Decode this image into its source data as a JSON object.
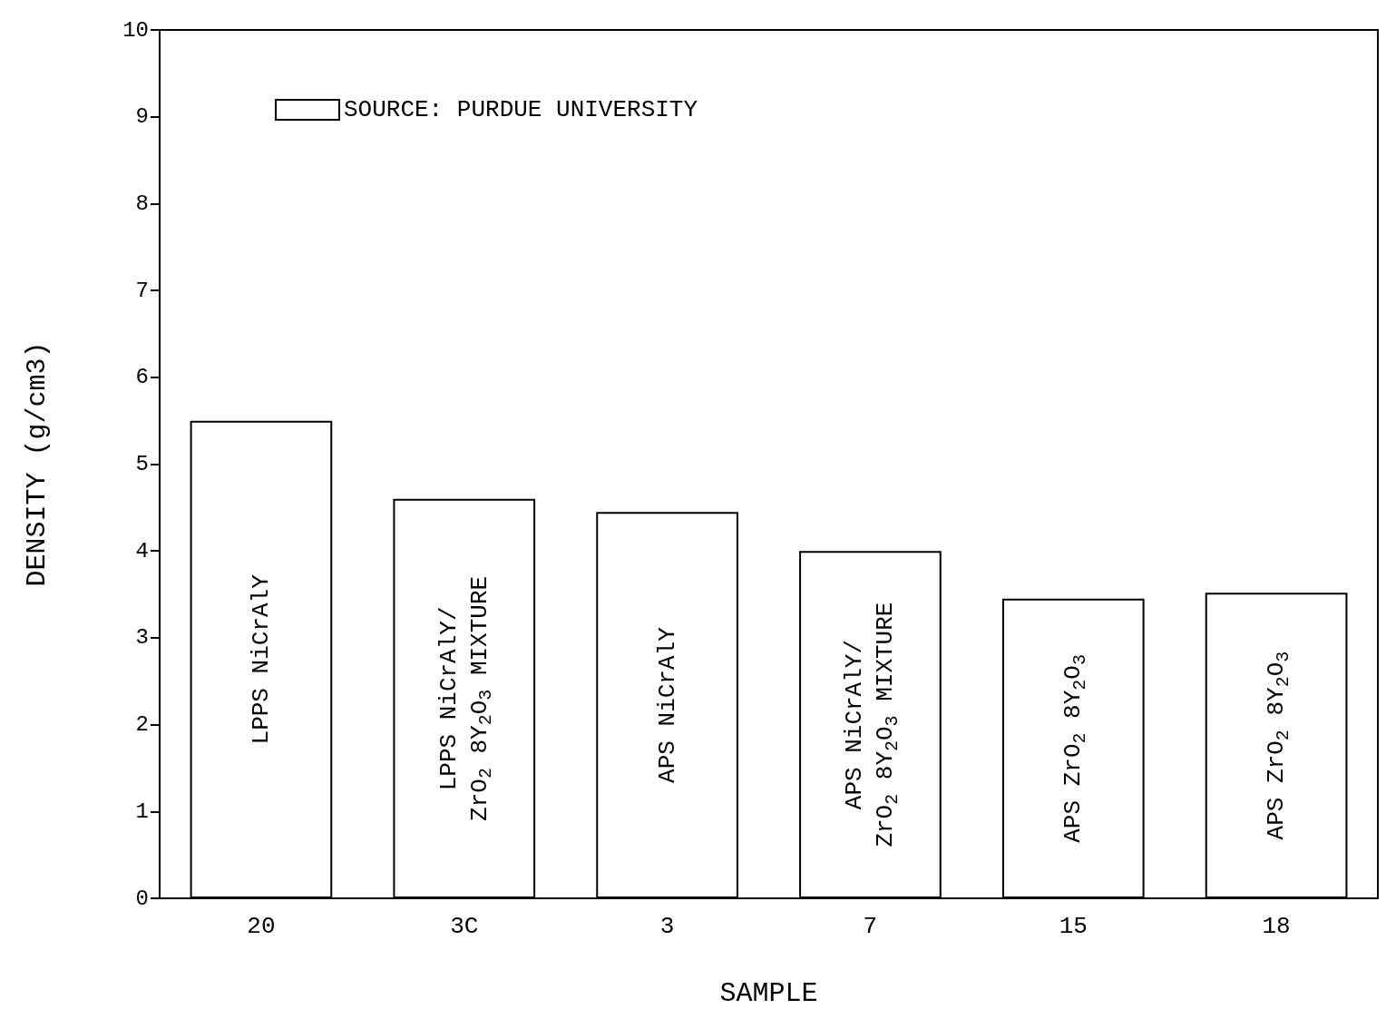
{
  "chart_data": {
    "type": "bar",
    "xlabel": "SAMPLE",
    "ylabel": "DENSITY (g/cm3)",
    "categories": [
      "20",
      "3C",
      "3",
      "7",
      "15",
      "18"
    ],
    "series": [
      {
        "name": "SOURCE: PURDUE UNIVERSITY",
        "color": "#ffffff",
        "values": [
          5.5,
          4.6,
          4.45,
          4.0,
          3.45,
          3.52
        ]
      }
    ],
    "ylim": [
      0,
      10
    ],
    "yticks": [
      0,
      1,
      2,
      3,
      4,
      5,
      6,
      7,
      8,
      9,
      10
    ],
    "grid": false,
    "legend": "top left",
    "annotations": [
      "LPPS NiCrAlY",
      "LPPS NiCrAlY/\nZrO$_{2}$ 8Y$_{2}$O$_{3}$ MIXTURE",
      "APS NiCrAlY",
      "APS NiCrAlY/\nZrO$_{2}$ 8Y$_{2}$O$_{3}$ MIXTURE",
      "APS ZrO$_{2}$ 8Y$_{2}$O$_{3}$",
      "APS ZrO$_{2}$ 8Y$_{2}$O$_{3}$"
    ]
  }
}
